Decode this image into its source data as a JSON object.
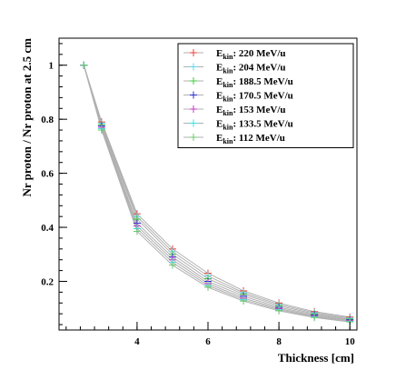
{
  "chart_data": {
    "type": "line",
    "title": "",
    "xlabel": "Thickness [cm]",
    "ylabel": "Nr proton / Nr proton at 2.5 cm",
    "xlim": [
      1.8,
      10.2
    ],
    "ylim": [
      0.02,
      1.1
    ],
    "x_ticks": [
      4,
      6,
      8,
      10
    ],
    "y_ticks": [
      0.2,
      0.4,
      0.6,
      0.8,
      1
    ],
    "x_tick_labels": [
      "4",
      "6",
      "8",
      "10"
    ],
    "y_tick_labels": [
      "0.2",
      "0.4",
      "0.6",
      "0.8",
      "1"
    ],
    "grid": false,
    "legend_position": "top-right",
    "line_color": "#b0b0b0",
    "x": [
      2.5,
      3,
      4,
      5,
      6,
      7,
      8,
      9,
      10
    ],
    "series": [
      {
        "legend_main": "E",
        "legend_sub": "kin",
        "legend_rest": ": 220 MeV/u",
        "color": "#e8413a",
        "values": [
          1.0,
          0.79,
          0.45,
          0.32,
          0.23,
          0.165,
          0.12,
          0.088,
          0.068
        ]
      },
      {
        "legend_main": "E",
        "legend_sub": "kin",
        "legend_rest": ": 204 MeV/u",
        "color": "#5fd6e8",
        "values": [
          1.0,
          0.785,
          0.44,
          0.31,
          0.22,
          0.158,
          0.115,
          0.084,
          0.064
        ]
      },
      {
        "legend_main": "E",
        "legend_sub": "kin",
        "legend_rest": ": 188.5 MeV/u",
        "color": "#3dcc3d",
        "values": [
          1.0,
          0.78,
          0.43,
          0.3,
          0.21,
          0.152,
          0.11,
          0.08,
          0.061
        ]
      },
      {
        "legend_main": "E",
        "legend_sub": "kin",
        "legend_rest": ": 170.5 MeV/u",
        "color": "#2a2ad0",
        "values": [
          1.0,
          0.775,
          0.415,
          0.29,
          0.2,
          0.145,
          0.104,
          0.076,
          0.058
        ]
      },
      {
        "legend_main": "E",
        "legend_sub": "kin",
        "legend_rest": ": 153 MeV/u",
        "color": "#c33ac3",
        "values": [
          1.0,
          0.77,
          0.405,
          0.28,
          0.192,
          0.138,
          0.099,
          0.072,
          0.055
        ]
      },
      {
        "legend_main": "E",
        "legend_sub": "kin",
        "legend_rest": ": 133.5 MeV/u",
        "color": "#3ae0e0",
        "values": [
          1.0,
          0.765,
          0.395,
          0.27,
          0.185,
          0.132,
          0.095,
          0.069,
          0.052
        ]
      },
      {
        "legend_main": "E",
        "legend_sub": "kin",
        "legend_rest": ": 112 MeV/u",
        "color": "#6cc86c",
        "values": [
          1.0,
          0.76,
          0.385,
          0.26,
          0.178,
          0.127,
          0.091,
          0.066,
          0.05
        ]
      }
    ]
  }
}
